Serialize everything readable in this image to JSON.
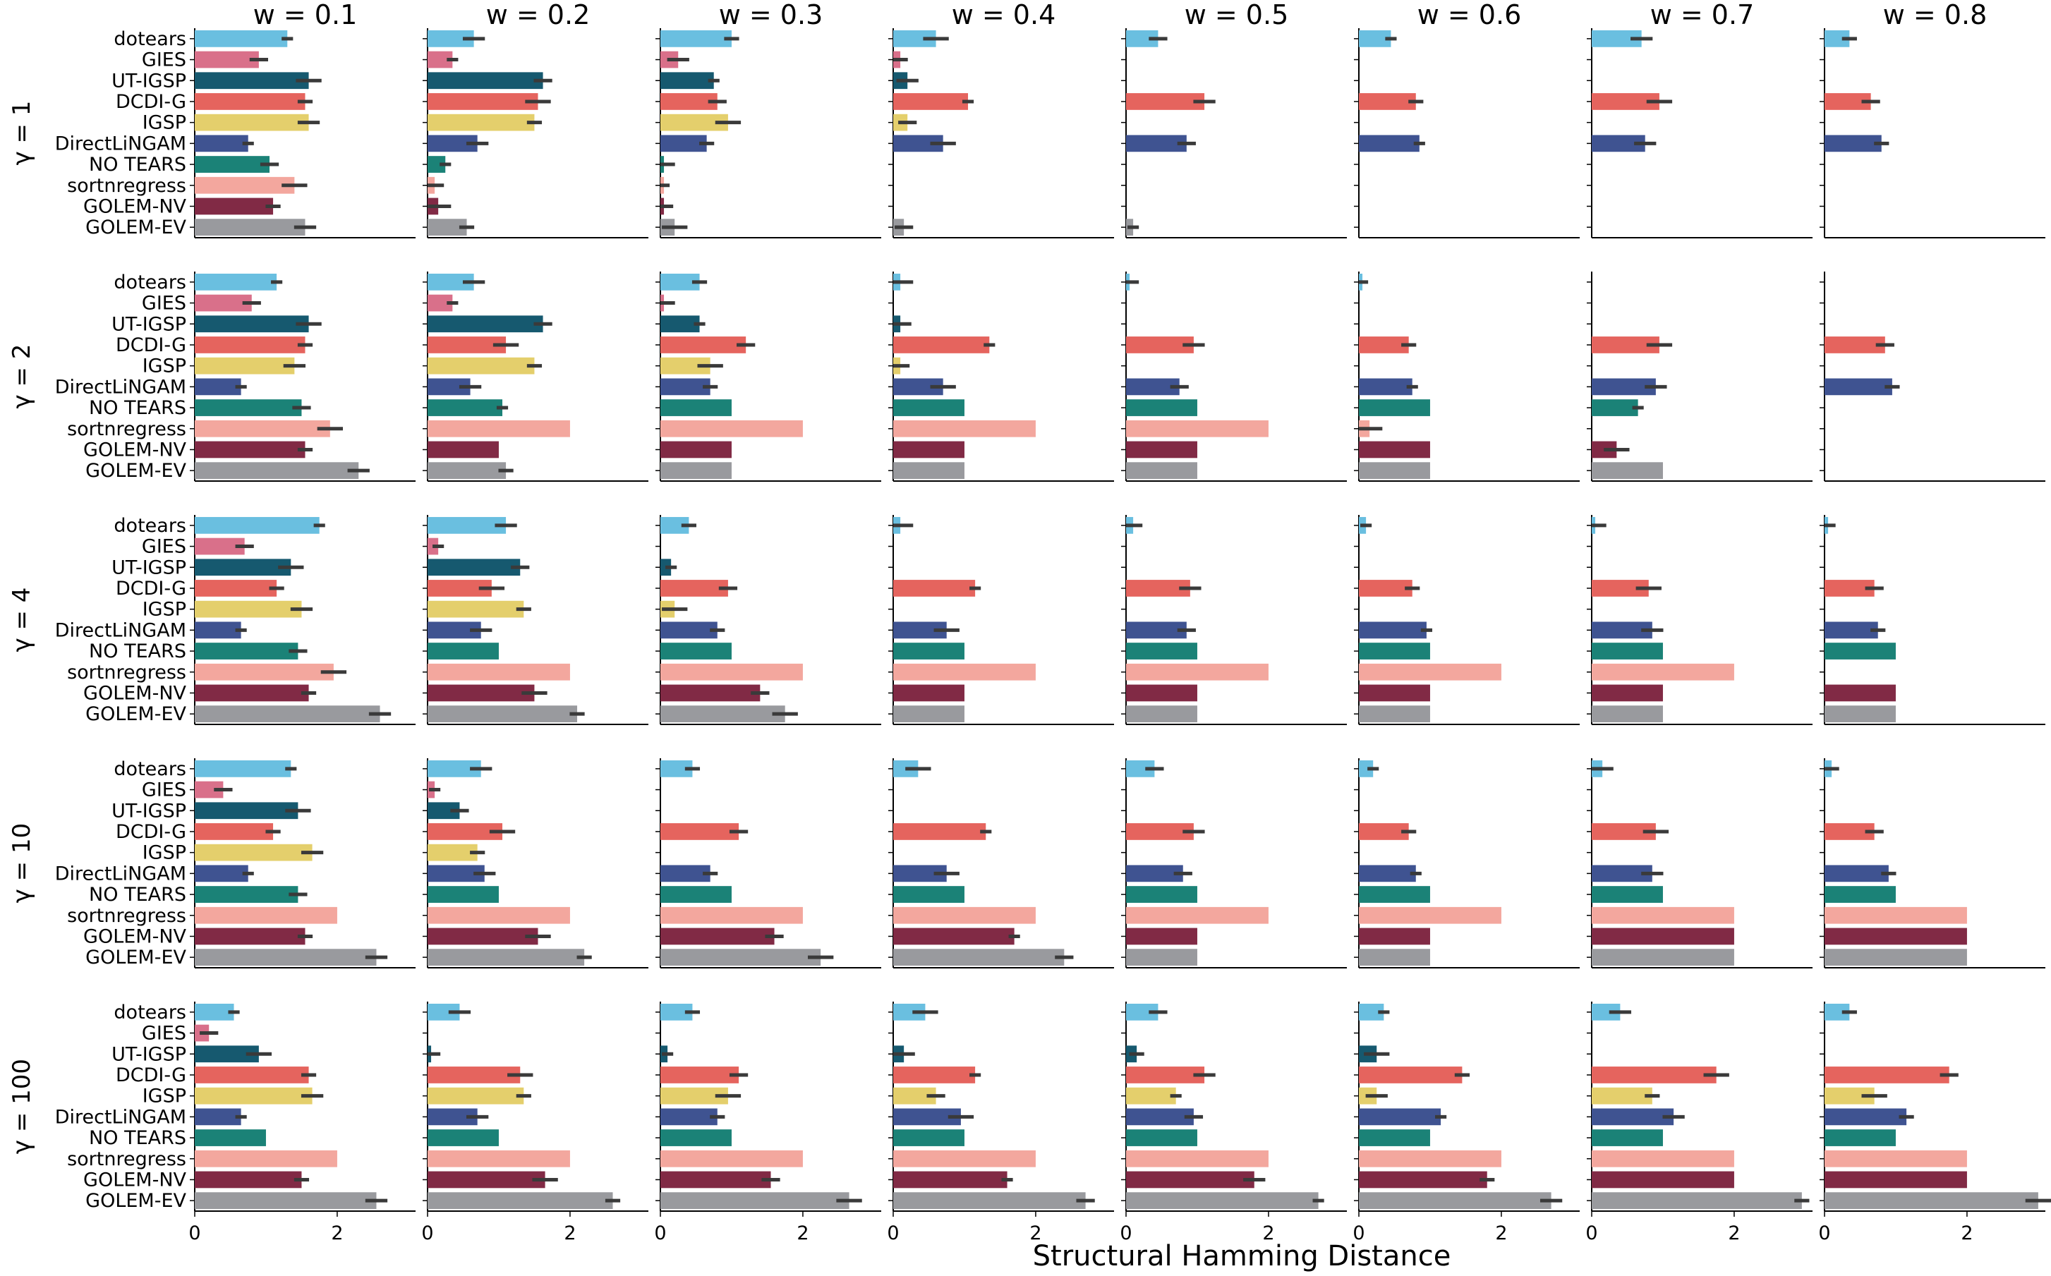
{
  "chart_data": {
    "type": "bar",
    "orientation": "horizontal",
    "layout": "grid",
    "xlabel": "Structural Hamming Distance",
    "xlim": [
      0,
      3.1
    ],
    "xticks": [
      0,
      2
    ],
    "columns": [
      "w = 0.1",
      "w = 0.2",
      "w = 0.3",
      "w = 0.4",
      "w = 0.5",
      "w = 0.6",
      "w = 0.7",
      "w = 0.8"
    ],
    "rows": [
      "γ = 1",
      "γ = 2",
      "γ = 4",
      "γ = 10",
      "γ = 100"
    ],
    "methods": [
      "dotears",
      "GIES",
      "UT-IGSP",
      "DCDI-G",
      "IGSP",
      "DirectLiNGAM",
      "NO TEARS",
      "sortnregress",
      "GOLEM-NV",
      "GOLEM-EV"
    ],
    "colors": [
      "#6abfe0",
      "#d9708a",
      "#16596f",
      "#e5645e",
      "#e4cf6c",
      "#3f5391",
      "#1b8277",
      "#f3a79e",
      "#812a45",
      "#999a9e"
    ],
    "values": [
      [
        [
          1.3,
          0.65,
          1.0,
          0.6,
          0.45,
          0.45,
          0.7,
          0.35
        ],
        [
          0.9,
          0.35,
          0.25,
          0.1,
          null,
          null,
          null,
          null
        ],
        [
          1.6,
          1.62,
          0.75,
          0.2,
          null,
          null,
          null,
          null
        ],
        [
          1.55,
          1.55,
          0.8,
          1.05,
          1.1,
          0.8,
          0.95,
          0.65
        ],
        [
          1.6,
          1.5,
          0.95,
          0.2,
          null,
          null,
          null,
          null
        ],
        [
          0.75,
          0.7,
          0.65,
          0.7,
          0.85,
          0.85,
          0.75,
          0.8
        ],
        [
          1.05,
          0.25,
          0.05,
          null,
          null,
          null,
          null,
          null
        ],
        [
          1.4,
          0.1,
          0.05,
          null,
          null,
          null,
          null,
          null
        ],
        [
          1.1,
          0.15,
          0.05,
          null,
          null,
          null,
          null,
          null
        ],
        [
          1.55,
          0.55,
          0.2,
          0.15,
          0.1,
          null,
          null,
          null
        ]
      ],
      [
        [
          1.15,
          0.65,
          0.55,
          0.1,
          0.05,
          0.05,
          null,
          null
        ],
        [
          0.8,
          0.35,
          0.05,
          null,
          null,
          null,
          null,
          null
        ],
        [
          1.6,
          1.62,
          0.55,
          0.1,
          null,
          null,
          null,
          null
        ],
        [
          1.55,
          1.1,
          1.2,
          1.35,
          0.95,
          0.7,
          0.95,
          0.85
        ],
        [
          1.4,
          1.5,
          0.7,
          0.1,
          null,
          null,
          null,
          null
        ],
        [
          0.65,
          0.6,
          0.7,
          0.7,
          0.75,
          0.75,
          0.9,
          0.95
        ],
        [
          1.5,
          1.05,
          1.0,
          1.0,
          1.0,
          1.0,
          0.65,
          null
        ],
        [
          1.9,
          2.0,
          2.0,
          2.0,
          2.0,
          0.15,
          null,
          null
        ],
        [
          1.55,
          1.0,
          1.0,
          1.0,
          1.0,
          1.0,
          0.35,
          null
        ],
        [
          2.3,
          1.1,
          1.0,
          1.0,
          1.0,
          1.0,
          1.0,
          null
        ]
      ],
      [
        [
          1.75,
          1.1,
          0.4,
          0.1,
          0.1,
          0.1,
          0.05,
          0.05
        ],
        [
          0.7,
          0.15,
          null,
          null,
          null,
          null,
          null,
          null
        ],
        [
          1.35,
          1.3,
          0.15,
          null,
          null,
          null,
          null,
          null
        ],
        [
          1.15,
          0.9,
          0.95,
          1.15,
          0.9,
          0.75,
          0.8,
          0.7
        ],
        [
          1.5,
          1.35,
          0.2,
          null,
          null,
          null,
          null,
          null
        ],
        [
          0.65,
          0.75,
          0.8,
          0.75,
          0.85,
          0.95,
          0.85,
          0.75
        ],
        [
          1.45,
          1.0,
          1.0,
          1.0,
          1.0,
          1.0,
          1.0,
          1.0
        ],
        [
          1.95,
          2.0,
          2.0,
          2.0,
          2.0,
          2.0,
          2.0,
          null
        ],
        [
          1.6,
          1.5,
          1.4,
          1.0,
          1.0,
          1.0,
          1.0,
          1.0
        ],
        [
          2.6,
          2.1,
          1.75,
          1.0,
          1.0,
          1.0,
          1.0,
          1.0
        ]
      ],
      [
        [
          1.35,
          0.75,
          0.45,
          0.35,
          0.4,
          0.2,
          0.15,
          0.1
        ],
        [
          0.4,
          0.1,
          null,
          null,
          null,
          null,
          null,
          null
        ],
        [
          1.45,
          0.45,
          null,
          null,
          null,
          null,
          null,
          null
        ],
        [
          1.1,
          1.05,
          1.1,
          1.3,
          0.95,
          0.7,
          0.9,
          0.7
        ],
        [
          1.65,
          0.7,
          null,
          null,
          null,
          null,
          null,
          null
        ],
        [
          0.75,
          0.8,
          0.7,
          0.75,
          0.8,
          0.8,
          0.85,
          0.9
        ],
        [
          1.45,
          1.0,
          1.0,
          1.0,
          1.0,
          1.0,
          1.0,
          1.0
        ],
        [
          2.0,
          2.0,
          2.0,
          2.0,
          2.0,
          2.0,
          2.0,
          2.0
        ],
        [
          1.55,
          1.55,
          1.6,
          1.7,
          1.0,
          1.0,
          2.0,
          2.0
        ],
        [
          2.55,
          2.2,
          2.25,
          2.4,
          1.0,
          1.0,
          2.0,
          2.0
        ]
      ],
      [
        [
          0.55,
          0.45,
          0.45,
          0.45,
          0.45,
          0.35,
          0.4,
          0.35
        ],
        [
          0.2,
          null,
          null,
          null,
          null,
          null,
          null,
          null
        ],
        [
          0.9,
          0.05,
          0.1,
          0.15,
          0.15,
          0.25,
          null,
          null
        ],
        [
          1.6,
          1.3,
          1.1,
          1.15,
          1.1,
          1.45,
          1.75,
          1.75
        ],
        [
          1.65,
          1.35,
          0.95,
          0.6,
          0.7,
          0.25,
          0.85,
          0.7
        ],
        [
          0.65,
          0.7,
          0.8,
          0.95,
          0.95,
          1.15,
          1.15,
          1.15
        ],
        [
          1.0,
          1.0,
          1.0,
          1.0,
          1.0,
          1.0,
          1.0,
          1.0
        ],
        [
          2.0,
          2.0,
          2.0,
          2.0,
          2.0,
          2.0,
          2.0,
          2.0
        ],
        [
          1.5,
          1.65,
          1.55,
          1.6,
          1.8,
          1.8,
          2.0,
          2.0
        ],
        [
          2.55,
          2.6,
          2.65,
          2.7,
          2.7,
          2.7,
          2.95,
          3.0
        ]
      ]
    ]
  }
}
